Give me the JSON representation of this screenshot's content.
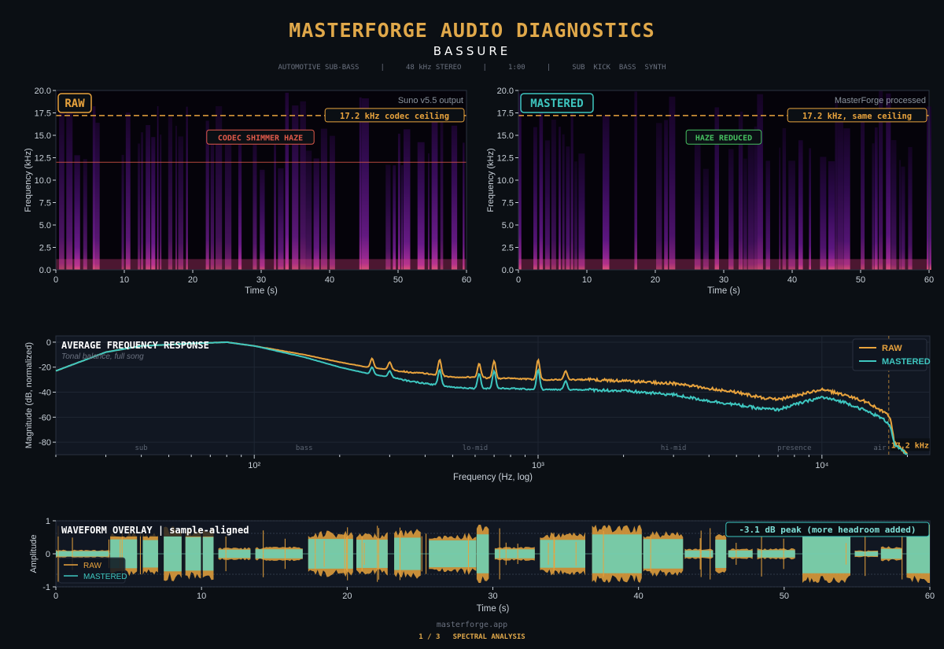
{
  "header": {
    "title": "MASTERFORGE AUDIO DIAGNOSTICS",
    "subtitle": "BASSURE",
    "meta": "AUTOMOTIVE SUB-BASS     |     48 kHz STEREO     |     1:00     |     SUB  KICK  BASS  SYNTH"
  },
  "footer": {
    "site": "masterforge.app",
    "page": "1 / 3   SPECTRAL ANALYSIS"
  },
  "colors": {
    "background": "#0b0f14",
    "raw": "#e8a33d",
    "mastered": "#3ec7c0",
    "codec_label": "#e05a4a",
    "haze_reduced": "#46c060"
  },
  "chart_data": [
    {
      "type": "heatmap",
      "badge": "RAW",
      "corner_label": "Suno v5.5 output",
      "xlabel": "Time (s)",
      "ylabel": "Frequency (kHz)",
      "xlim": [
        0,
        60
      ],
      "ylim": [
        0,
        20
      ],
      "x_ticks": [
        "0",
        "10",
        "20",
        "30",
        "40",
        "50",
        "60"
      ],
      "y_ticks": [
        "0.0",
        "2.5",
        "5.0",
        "7.5",
        "10.0",
        "12.5",
        "15.0",
        "17.5",
        "20.0"
      ],
      "ceiling_khz": 17.2,
      "ceiling_label": "17.2 kHz codec ceiling",
      "annotation": "CODEC SHIMMER HAZE",
      "haze_line_khz": 12.0
    },
    {
      "type": "heatmap",
      "badge": "MASTERED",
      "corner_label": "MasterForge processed",
      "xlabel": "Time (s)",
      "ylabel": "Frequency (kHz)",
      "xlim": [
        0,
        60
      ],
      "ylim": [
        0,
        20
      ],
      "x_ticks": [
        "0",
        "10",
        "20",
        "30",
        "40",
        "50",
        "60"
      ],
      "y_ticks": [
        "0.0",
        "2.5",
        "5.0",
        "7.5",
        "10.0",
        "12.5",
        "15.0",
        "17.5",
        "20.0"
      ],
      "ceiling_khz": 17.2,
      "ceiling_label": "17.2 kHz, same ceiling",
      "annotation": "HAZE REDUCED"
    },
    {
      "type": "line",
      "title": "AVERAGE FREQUENCY RESPONSE",
      "subtitle": "Tonal balance, full song",
      "xlabel": "Frequency (Hz, log)",
      "ylabel": "Magnitude (dB, normalized)",
      "x_scale": "log",
      "xlim": [
        20,
        24000
      ],
      "ylim": [
        -90,
        5
      ],
      "y_ticks": [
        "0",
        "-20",
        "-40",
        "-60",
        "-80"
      ],
      "x_tick_labels": [
        "10²",
        "10³",
        "10⁴"
      ],
      "x_tick_values": [
        100,
        1000,
        10000
      ],
      "band_labels": [
        {
          "label": "sub",
          "hz": 40
        },
        {
          "label": "bass",
          "hz": 150
        },
        {
          "label": "lo-mid",
          "hz": 600
        },
        {
          "label": "hi-mid",
          "hz": 3000
        },
        {
          "label": "presence",
          "hz": 8000
        },
        {
          "label": "air",
          "hz": 16000
        }
      ],
      "cutoff_hz": 17200,
      "cutoff_label": "17.2 kHz",
      "legend_position": "top-right",
      "x": [
        20,
        30,
        40,
        50,
        60,
        80,
        100,
        150,
        200,
        250,
        300,
        350,
        400,
        500,
        600,
        700,
        800,
        1000,
        1500,
        2000,
        3000,
        4000,
        5000,
        6000,
        7000,
        8000,
        10000,
        12000,
        14000,
        15000,
        16000,
        17000,
        17500,
        18000,
        20000
      ],
      "series": [
        {
          "name": "RAW",
          "values": [
            -23,
            -8,
            -3,
            -2,
            -1,
            0,
            -3,
            -10,
            -16,
            -20,
            -22,
            -24,
            -25,
            -28,
            -28,
            -29,
            -29,
            -30,
            -30,
            -31,
            -33,
            -37,
            -40,
            -44,
            -46,
            -43,
            -38,
            -42,
            -47,
            -50,
            -54,
            -58,
            -63,
            -80,
            -90
          ]
        },
        {
          "name": "MASTERED",
          "values": [
            -23,
            -8,
            -3,
            -2,
            -1,
            0,
            -3,
            -12,
            -20,
            -25,
            -28,
            -31,
            -33,
            -36,
            -37,
            -37,
            -37,
            -38,
            -38,
            -39,
            -42,
            -47,
            -50,
            -53,
            -54,
            -50,
            -44,
            -48,
            -54,
            -57,
            -60,
            -64,
            -68,
            -82,
            -90
          ]
        }
      ],
      "peaks": [
        {
          "hz": 260,
          "raw": -13,
          "mastered": -20
        },
        {
          "hz": 300,
          "raw": -16,
          "mastered": -23
        },
        {
          "hz": 450,
          "raw": -14,
          "mastered": -22
        },
        {
          "hz": 620,
          "raw": -17,
          "mastered": -25
        },
        {
          "hz": 700,
          "raw": -15,
          "mastered": -23
        },
        {
          "hz": 1000,
          "raw": -14,
          "mastered": -22
        },
        {
          "hz": 1250,
          "raw": -23,
          "mastered": -31
        }
      ]
    },
    {
      "type": "area",
      "title": "WAVEFORM OVERLAY  |  sample-aligned",
      "annotation": "-3.1 dB peak (more headroom added)",
      "xlabel": "Time (s)",
      "ylabel": "Amplitude",
      "xlim": [
        0,
        60
      ],
      "ylim": [
        -1,
        1
      ],
      "x_ticks": [
        "0",
        "10",
        "20",
        "30",
        "40",
        "50",
        "60"
      ],
      "y_ticks": [
        "1",
        "0",
        "-1"
      ],
      "legend_position": "bottom-left",
      "series": [
        {
          "name": "RAW",
          "peak": 0.88
        },
        {
          "name": "MASTERED",
          "peak": 0.62
        }
      ]
    }
  ]
}
